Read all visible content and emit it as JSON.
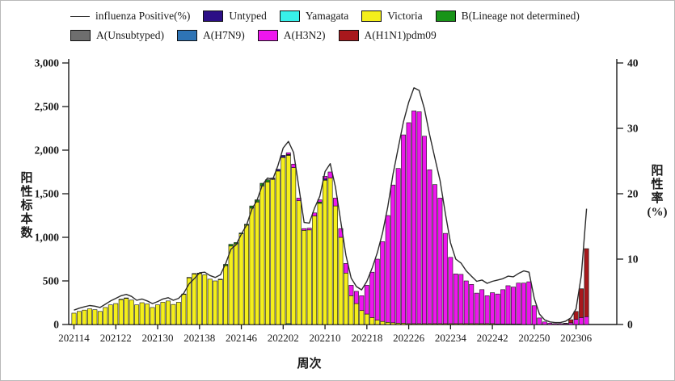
{
  "legend": {
    "line_label": "influenza Positive(%)"
  },
  "axes": {
    "left_title": "阳性标本数",
    "right_title": "阳性率(%)",
    "x_title": "周次",
    "left_tick_labels": [
      "0",
      "500",
      "1,000",
      "1,500",
      "2,000",
      "2,500",
      "3,000"
    ],
    "left_tick_values": [
      0,
      500,
      1000,
      1500,
      2000,
      2500,
      3000
    ],
    "right_tick_labels": [
      "0",
      "10",
      "20",
      "30",
      "40"
    ],
    "right_tick_values": [
      0,
      10,
      20,
      30,
      40
    ]
  },
  "chart_data": {
    "type": "bar",
    "subtype": "stacked-bars-with-line-overlay",
    "title": "",
    "xlabel": "周次",
    "ylabel_left": "阳性标本数",
    "ylabel_right": "阳性率(%)",
    "ylim_left": [
      0,
      3000
    ],
    "ylim_right": [
      0,
      40
    ],
    "x_tick_labels": [
      "202114",
      "202122",
      "202130",
      "202138",
      "202146",
      "202202",
      "202210",
      "202218",
      "202226",
      "202234",
      "202242",
      "202250",
      "202306"
    ],
    "x_tick_indices": [
      0,
      8,
      16,
      24,
      32,
      40,
      48,
      56,
      64,
      72,
      80,
      88,
      96
    ],
    "categories": [
      "202114",
      "202115",
      "202116",
      "202117",
      "202118",
      "202119",
      "202120",
      "202121",
      "202122",
      "202123",
      "202124",
      "202125",
      "202126",
      "202127",
      "202128",
      "202129",
      "202130",
      "202131",
      "202132",
      "202133",
      "202134",
      "202135",
      "202136",
      "202137",
      "202138",
      "202139",
      "202140",
      "202141",
      "202142",
      "202143",
      "202144",
      "202145",
      "202146",
      "202147",
      "202148",
      "202149",
      "202150",
      "202151",
      "202152",
      "202201",
      "202202",
      "202203",
      "202204",
      "202205",
      "202206",
      "202207",
      "202208",
      "202209",
      "202210",
      "202211",
      "202212",
      "202213",
      "202214",
      "202215",
      "202216",
      "202217",
      "202218",
      "202219",
      "202220",
      "202221",
      "202222",
      "202223",
      "202224",
      "202225",
      "202226",
      "202227",
      "202228",
      "202229",
      "202230",
      "202231",
      "202232",
      "202233",
      "202234",
      "202235",
      "202236",
      "202237",
      "202238",
      "202239",
      "202240",
      "202241",
      "202242",
      "202243",
      "202244",
      "202245",
      "202246",
      "202247",
      "202248",
      "202249",
      "202250",
      "202251",
      "202252",
      "202301",
      "202302",
      "202303",
      "202304",
      "202305",
      "202306",
      "202307",
      "202308"
    ],
    "series": [
      {
        "name": "Untyped",
        "color": "#2c0f86",
        "values": [
          0,
          0,
          0,
          0,
          0,
          0,
          0,
          0,
          0,
          0,
          0,
          0,
          0,
          0,
          0,
          0,
          0,
          0,
          0,
          0,
          0,
          0,
          0,
          0,
          0,
          0,
          0,
          0,
          0,
          0,
          0,
          0,
          0,
          0,
          0,
          0,
          0,
          0,
          15,
          20,
          25,
          10,
          0,
          0,
          0,
          0,
          0,
          0,
          15,
          0,
          0,
          0,
          0,
          0,
          0,
          0,
          0,
          0,
          0,
          0,
          0,
          0,
          0,
          0,
          0,
          0,
          0,
          0,
          0,
          0,
          0,
          0,
          0,
          0,
          0,
          0,
          0,
          0,
          0,
          0,
          0,
          0,
          0,
          0,
          0,
          0,
          0,
          0,
          0,
          0,
          0,
          0,
          0,
          0,
          0,
          0,
          0,
          0,
          0
        ]
      },
      {
        "name": "Yamagata",
        "color": "#38f0ea",
        "values": [
          0,
          0,
          0,
          0,
          0,
          0,
          0,
          0,
          0,
          0,
          0,
          0,
          0,
          0,
          0,
          0,
          0,
          0,
          0,
          0,
          0,
          0,
          0,
          0,
          0,
          0,
          0,
          0,
          0,
          0,
          0,
          0,
          0,
          0,
          0,
          0,
          0,
          0,
          0,
          0,
          0,
          10,
          0,
          0,
          0,
          0,
          0,
          0,
          0,
          0,
          0,
          0,
          0,
          0,
          0,
          0,
          0,
          0,
          0,
          0,
          0,
          0,
          0,
          0,
          0,
          0,
          0,
          0,
          0,
          0,
          0,
          0,
          0,
          0,
          0,
          0,
          0,
          0,
          0,
          0,
          0,
          0,
          0,
          0,
          0,
          0,
          0,
          0,
          0,
          0,
          0,
          0,
          0,
          0,
          0,
          0,
          0,
          0,
          0
        ]
      },
      {
        "name": "Victoria",
        "color": "#f4ef1b",
        "values": [
          130,
          150,
          165,
          180,
          170,
          150,
          195,
          225,
          240,
          285,
          300,
          280,
          225,
          250,
          235,
          195,
          225,
          255,
          270,
          230,
          255,
          345,
          535,
          580,
          585,
          570,
          520,
          500,
          515,
          675,
          900,
          925,
          1040,
          1140,
          1335,
          1405,
          1590,
          1635,
          1665,
          1760,
          1915,
          1930,
          1800,
          1420,
          1080,
          1085,
          1245,
          1390,
          1655,
          1680,
          1360,
          1000,
          590,
          330,
          240,
          160,
          120,
          80,
          50,
          35,
          25,
          20,
          15,
          15,
          10,
          10,
          10,
          10,
          10,
          10,
          10,
          10,
          10,
          10,
          10,
          10,
          10,
          10,
          10,
          10,
          10,
          5,
          5,
          5,
          5,
          5,
          0,
          0,
          0,
          0,
          0,
          0,
          0,
          0,
          0,
          0,
          0,
          0,
          0
        ]
      },
      {
        "name": "B(Lineage not determined)",
        "color": "#189418",
        "values": [
          0,
          0,
          0,
          0,
          0,
          0,
          0,
          0,
          0,
          5,
          5,
          0,
          0,
          0,
          0,
          0,
          0,
          0,
          0,
          0,
          0,
          5,
          5,
          5,
          5,
          0,
          0,
          0,
          5,
          15,
          20,
          15,
          10,
          10,
          25,
          25,
          30,
          25,
          0,
          0,
          0,
          0,
          0,
          0,
          0,
          0,
          0,
          15,
          0,
          0,
          0,
          0,
          0,
          0,
          0,
          0,
          0,
          0,
          0,
          0,
          0,
          0,
          0,
          0,
          0,
          0,
          0,
          0,
          0,
          0,
          0,
          0,
          0,
          0,
          0,
          0,
          0,
          0,
          0,
          0,
          0,
          0,
          0,
          0,
          0,
          0,
          0,
          0,
          0,
          0,
          0,
          0,
          0,
          0,
          0,
          0,
          0,
          0,
          0
        ]
      },
      {
        "name": "A(Unsubtyped)",
        "color": "#6e6e6e",
        "values": [
          0,
          0,
          0,
          0,
          0,
          0,
          0,
          0,
          0,
          0,
          0,
          0,
          0,
          0,
          0,
          0,
          0,
          0,
          0,
          0,
          0,
          0,
          0,
          0,
          0,
          0,
          0,
          0,
          0,
          0,
          0,
          0,
          0,
          0,
          0,
          0,
          0,
          0,
          0,
          0,
          0,
          0,
          0,
          0,
          0,
          0,
          0,
          0,
          0,
          0,
          0,
          0,
          0,
          0,
          0,
          0,
          0,
          0,
          0,
          0,
          0,
          0,
          0,
          0,
          0,
          0,
          0,
          0,
          0,
          0,
          0,
          0,
          0,
          0,
          0,
          0,
          0,
          0,
          0,
          0,
          0,
          0,
          0,
          0,
          0,
          0,
          0,
          0,
          0,
          0,
          0,
          0,
          0,
          0,
          0,
          0,
          0,
          0,
          0
        ]
      },
      {
        "name": "A(H7N9)",
        "color": "#2e74b5",
        "values": [
          0,
          0,
          0,
          0,
          0,
          0,
          0,
          0,
          0,
          0,
          0,
          0,
          0,
          0,
          0,
          0,
          0,
          0,
          0,
          0,
          0,
          0,
          0,
          0,
          0,
          0,
          0,
          0,
          0,
          0,
          0,
          0,
          0,
          0,
          0,
          0,
          0,
          0,
          0,
          0,
          0,
          0,
          0,
          0,
          0,
          0,
          0,
          0,
          0,
          0,
          0,
          0,
          0,
          0,
          0,
          0,
          0,
          0,
          0,
          0,
          0,
          0,
          0,
          0,
          0,
          0,
          0,
          0,
          0,
          0,
          0,
          0,
          0,
          0,
          0,
          0,
          0,
          0,
          0,
          0,
          0,
          0,
          0,
          0,
          0,
          0,
          0,
          0,
          0,
          0,
          0,
          0,
          0,
          0,
          0,
          0,
          0,
          0,
          0
        ]
      },
      {
        "name": "A(H3N2)",
        "color": "#ee16ee",
        "values": [
          0,
          0,
          0,
          0,
          0,
          0,
          0,
          0,
          0,
          0,
          0,
          0,
          0,
          0,
          0,
          0,
          0,
          0,
          0,
          0,
          0,
          0,
          0,
          0,
          0,
          0,
          0,
          0,
          0,
          0,
          0,
          0,
          0,
          0,
          0,
          0,
          0,
          0,
          0,
          0,
          0,
          20,
          40,
          30,
          20,
          20,
          35,
          25,
          30,
          70,
          90,
          100,
          110,
          120,
          140,
          170,
          330,
          520,
          700,
          915,
          1225,
          1580,
          1775,
          2160,
          2305,
          2440,
          2430,
          2150,
          1765,
          1595,
          1440,
          1035,
          760,
          570,
          565,
          490,
          450,
          350,
          390,
          320,
          355,
          345,
          395,
          440,
          425,
          470,
          475,
          490,
          215,
          75,
          30,
          15,
          10,
          10,
          10,
          20,
          60,
          80,
          90
        ]
      },
      {
        "name": "A(H1N1)pdm09",
        "color": "#a8181c",
        "values": [
          0,
          0,
          0,
          0,
          0,
          0,
          0,
          0,
          0,
          0,
          0,
          0,
          0,
          0,
          0,
          0,
          0,
          0,
          0,
          0,
          0,
          0,
          0,
          0,
          0,
          0,
          0,
          0,
          0,
          0,
          0,
          0,
          0,
          0,
          0,
          0,
          0,
          0,
          0,
          0,
          0,
          0,
          0,
          0,
          0,
          0,
          0,
          0,
          0,
          0,
          0,
          0,
          0,
          0,
          0,
          0,
          0,
          0,
          0,
          0,
          0,
          0,
          0,
          0,
          0,
          0,
          0,
          0,
          0,
          0,
          0,
          0,
          0,
          0,
          0,
          0,
          0,
          0,
          0,
          0,
          0,
          0,
          0,
          0,
          0,
          0,
          0,
          0,
          0,
          0,
          0,
          0,
          0,
          0,
          5,
          35,
          90,
          330,
          780
        ]
      }
    ],
    "line": {
      "name": "influenza Positive(%)",
      "color": "#2b2b2b",
      "axis": "right",
      "values": [
        2.2,
        2.5,
        2.7,
        2.9,
        2.8,
        2.6,
        3.1,
        3.6,
        4.0,
        4.4,
        4.6,
        4.3,
        3.7,
        3.9,
        3.6,
        3.2,
        3.5,
        3.9,
        4.1,
        3.7,
        4.0,
        4.8,
        6.2,
        7.0,
        7.9,
        8.0,
        7.5,
        7.2,
        7.6,
        9.3,
        11.5,
        12.2,
        13.8,
        15.2,
        17.6,
        19.0,
        21.3,
        22.4,
        22.2,
        24.3,
        27.0,
        28.0,
        26.3,
        21.0,
        15.6,
        15.5,
        17.8,
        19.6,
        23.4,
        24.6,
        21.0,
        15.8,
        10.6,
        7.1,
        5.8,
        5.3,
        6.6,
        8.6,
        11.0,
        14.0,
        18.0,
        23.0,
        27.0,
        31.0,
        34.0,
        36.2,
        35.8,
        33.0,
        29.0,
        25.5,
        22.0,
        17.0,
        12.5,
        10.0,
        9.4,
        8.2,
        7.4,
        6.6,
        6.8,
        6.3,
        6.6,
        6.8,
        7.0,
        7.4,
        7.3,
        7.8,
        8.2,
        8.0,
        4.0,
        1.6,
        0.7,
        0.4,
        0.3,
        0.3,
        0.5,
        1.0,
        2.4,
        7.5,
        17.7
      ]
    },
    "legend_position": "top",
    "grid": false
  }
}
